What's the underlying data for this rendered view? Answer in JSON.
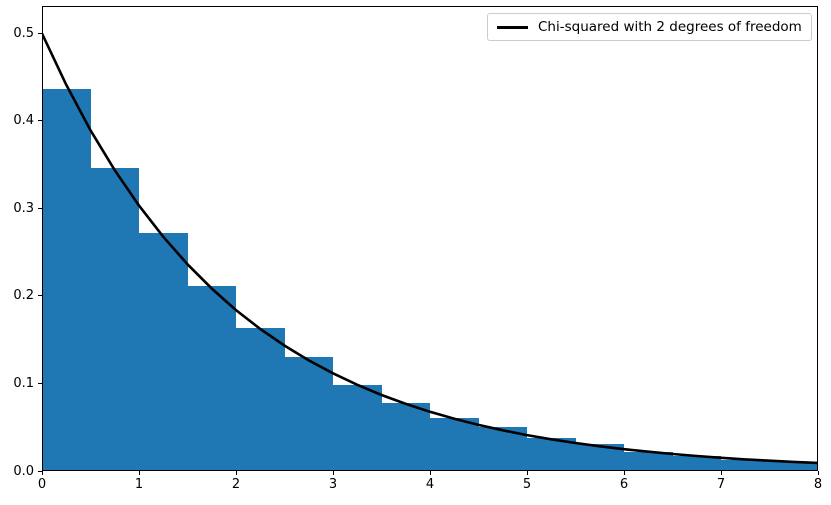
{
  "chart_data": {
    "type": "bar",
    "subtype": "density_histogram_with_pdf_curve",
    "title": "",
    "xlabel": "",
    "ylabel": "",
    "xlim": [
      0,
      8
    ],
    "ylim": [
      0,
      0.5314
    ],
    "grid": false,
    "background_color": "#ffffff",
    "axes_edge_color": "#000000",
    "bar_color": "#1f77b4",
    "histogram": {
      "bin_start": 0,
      "bin_width": 0.5,
      "densities": [
        0.436,
        0.346,
        0.272,
        0.211,
        0.164,
        0.13,
        0.098,
        0.078,
        0.061,
        0.05,
        0.038,
        0.031,
        0.022,
        0.017,
        0.013,
        0.01
      ]
    },
    "series": [
      {
        "name": "Chi-squared with 2 degrees of freedom",
        "type": "line",
        "color": "#000000",
        "line_width": 2.6,
        "x": [
          0,
          0.25,
          0.5,
          0.75,
          1.0,
          1.25,
          1.5,
          1.75,
          2.0,
          2.25,
          2.5,
          2.75,
          3.0,
          3.25,
          3.5,
          3.75,
          4.0,
          4.25,
          4.5,
          4.75,
          5.0,
          5.25,
          5.5,
          5.75,
          6.0,
          6.25,
          6.5,
          6.75,
          7.0,
          7.25,
          7.5,
          7.75,
          8.0
        ],
        "y": [
          0.5,
          0.4412,
          0.3894,
          0.3436,
          0.3033,
          0.2676,
          0.2362,
          0.2084,
          0.1839,
          0.1623,
          0.1433,
          0.1264,
          0.1116,
          0.0985,
          0.0869,
          0.0767,
          0.0677,
          0.0597,
          0.0527,
          0.0465,
          0.041,
          0.0362,
          0.032,
          0.0282,
          0.0249,
          0.022,
          0.0194,
          0.0171,
          0.0151,
          0.0133,
          0.0118,
          0.0104,
          0.0092
        ]
      }
    ],
    "x_tick_labels": [
      "0",
      "1",
      "2",
      "3",
      "4",
      "5",
      "6",
      "7",
      "8"
    ],
    "x_tick_values": [
      0,
      1,
      2,
      3,
      4,
      5,
      6,
      7,
      8
    ],
    "y_tick_labels": [
      "0.0",
      "0.1",
      "0.2",
      "0.3",
      "0.4",
      "0.5"
    ],
    "y_tick_values": [
      0,
      0.1,
      0.2,
      0.3,
      0.4,
      0.5
    ],
    "legend": {
      "position": "upper right",
      "frame": true,
      "entries": [
        {
          "label": "Chi-squared with 2 degrees of freedom",
          "sample_color": "#000000"
        }
      ]
    }
  }
}
